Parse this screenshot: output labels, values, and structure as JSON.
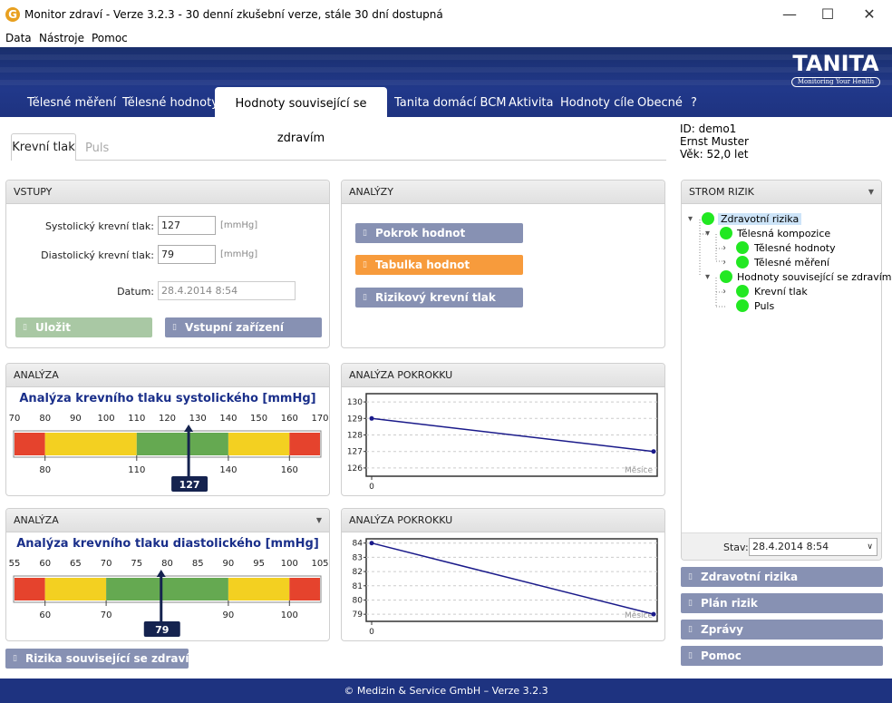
{
  "window": {
    "title": "Monitor zdraví - Verze 3.2.3 - 30 denní zkušební verze, stále 30 dní dostupná",
    "app_icon": "G",
    "controls": {
      "minimize": "—",
      "maximize": "☐",
      "close": "✕"
    }
  },
  "menu": [
    "Data",
    "Nástroje",
    "Pomoc"
  ],
  "brand": {
    "logo": "TANITA",
    "tagline": "Monitoring Your Health"
  },
  "nav": {
    "tabs": [
      "Tělesné měření",
      "Tělesné hodnoty",
      "Hodnoty související se zdravím",
      "Tanita domácí BCM",
      "Aktivita",
      "Hodnoty cíle",
      "Obecné",
      "?"
    ],
    "active": "Hodnoty související se zdravím"
  },
  "subtabs": {
    "active": "Krevní tlak",
    "other": "Puls"
  },
  "user": {
    "id": "ID: demo1",
    "name": "Ernst Muster",
    "age": "Věk: 52,0 let"
  },
  "inputs": {
    "title": "VSTUPY",
    "systolic_label": "Systolický krevní tlak:",
    "systolic_value": "127",
    "diastolic_label": "Diastolický krevní tlak:",
    "diastolic_value": "79",
    "unit": "[mmHg]",
    "date_label": "Datum:",
    "date_value": "28.4.2014 8:54",
    "save_button": "Uložit",
    "device_button": "Vstupní zařízení"
  },
  "analyses": {
    "title": "ANALÝZY",
    "buttons": [
      "Pokrok hodnot",
      "Tabulka hodnot",
      "Rizikový krevní tlak"
    ]
  },
  "gauge_sys": {
    "panel_title": "ANALÝZA",
    "title": "Analýza krevního tlaku systolického [mmHg]",
    "top_ticks": [
      "70",
      "80",
      "90",
      "100",
      "110",
      "120",
      "130",
      "140",
      "150",
      "160",
      "170"
    ],
    "bottom_ticks": [
      "80",
      "110",
      "140",
      "160"
    ],
    "value": 127,
    "value_label": "127",
    "colors": {
      "red": "#e5432d",
      "yellow": "#f3d021",
      "green": "#65a951"
    }
  },
  "gauge_dia": {
    "panel_title": "ANALÝZA",
    "title": "Analýza krevního tlaku diastolického [mmHg]",
    "top_ticks": [
      "55",
      "60",
      "65",
      "70",
      "75",
      "80",
      "85",
      "90",
      "95",
      "100",
      "105"
    ],
    "bottom_ticks": [
      "60",
      "70",
      "90",
      "100"
    ],
    "value": 79,
    "value_label": "79"
  },
  "progress_sys": {
    "panel_title": "ANALÝZA POKROKKU",
    "y_ticks": [
      "130",
      "129",
      "128",
      "127",
      "126"
    ],
    "x_tick": "0",
    "x_unit": "Měsíce",
    "chart_data": {
      "type": "line",
      "ylim": [
        125.5,
        130.5
      ],
      "points": [
        129,
        127
      ]
    }
  },
  "progress_dia": {
    "panel_title": "ANALÝZA POKROKKU",
    "y_ticks": [
      "84",
      "83",
      "82",
      "81",
      "80",
      "79"
    ],
    "x_tick": "0",
    "x_unit": "Měsíce",
    "chart_data": {
      "type": "line",
      "ylim": [
        78.5,
        84.3
      ],
      "points": [
        84,
        79
      ]
    }
  },
  "risk_button": "Rizika související se zdravím",
  "risk_tree": {
    "title": "STROM RIZIK",
    "nodes": [
      "Zdravotní rizika",
      "Tělesná kompozice",
      "Tělesné hodnoty",
      "Tělesné měření",
      "Hodnoty související se zdravím",
      "Krevní tlak",
      "Puls"
    ],
    "status_label": "Stav:",
    "status_value": "28.4.2014 8:54"
  },
  "side_buttons": [
    "Zdravotní rizika",
    "Plán rizik",
    "Zprávy",
    "Pomoc"
  ],
  "footer": "© Medizin & Service GmbH – Verze 3.2.3"
}
